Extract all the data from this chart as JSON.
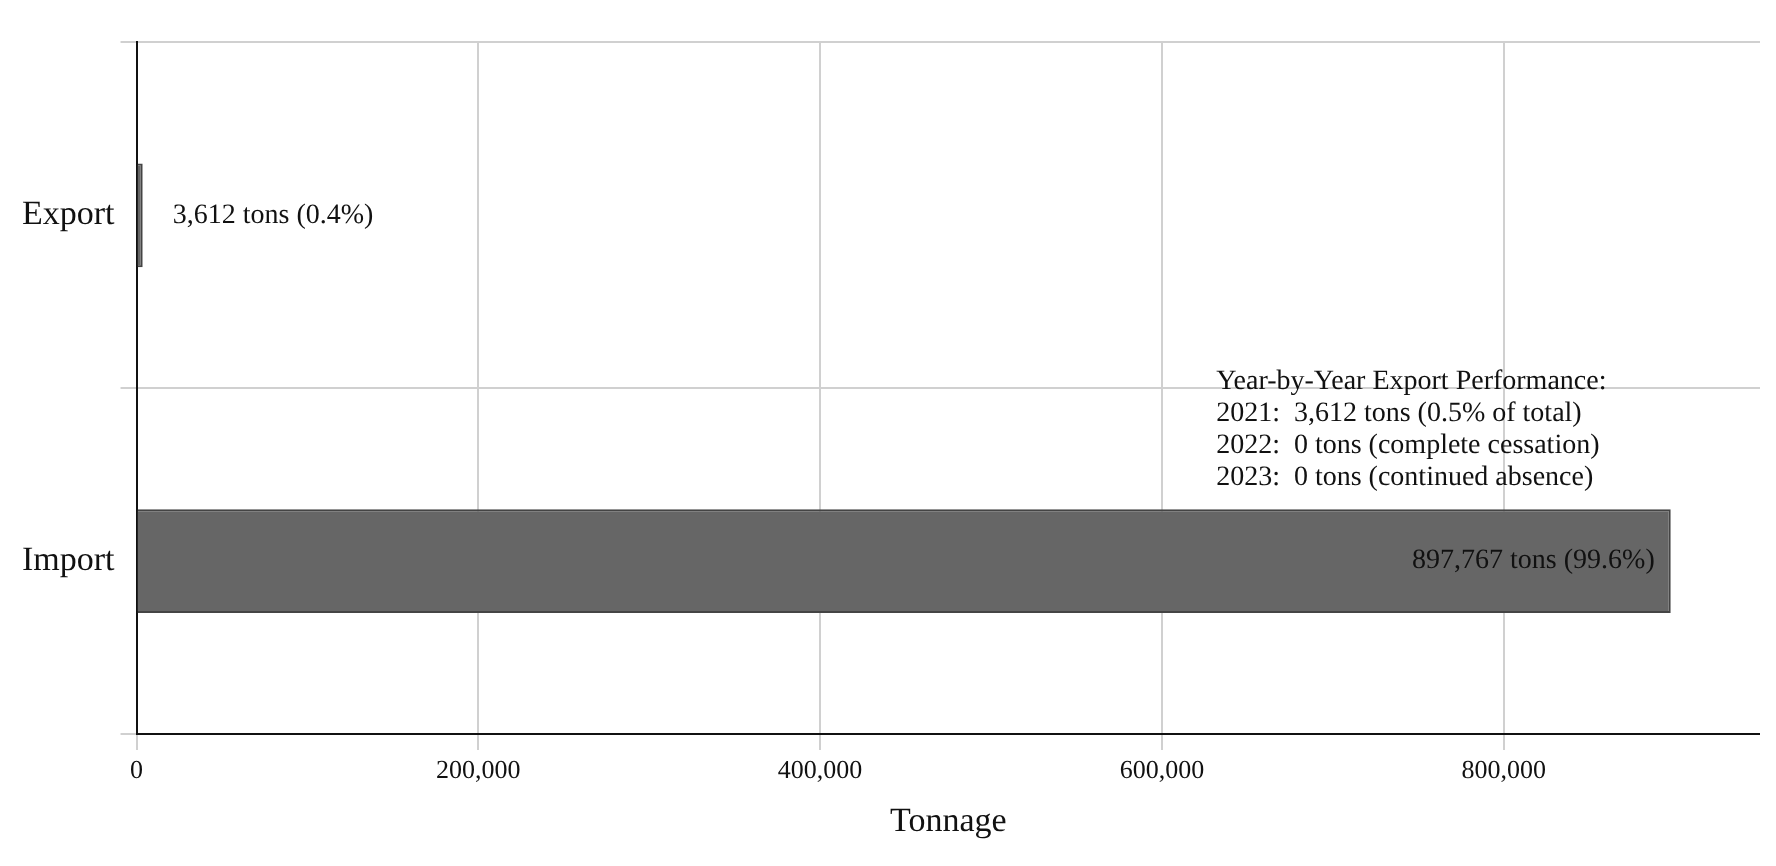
{
  "chart_data": {
    "type": "bar",
    "orientation": "horizontal",
    "categories": [
      "Export",
      "Import"
    ],
    "values": [
      3612,
      897767
    ],
    "color": "#666666",
    "value_labels": [
      "3,612 tons (0.4%)",
      "897,767 tons (99.6%)"
    ],
    "xlabel": "Tonnage",
    "xlim": [
      0,
      950000
    ],
    "xticks": [
      {
        "value": 0,
        "label": "0"
      },
      {
        "value": 200000,
        "label": "200,000"
      },
      {
        "value": 400000,
        "label": "400,000"
      },
      {
        "value": 600000,
        "label": "600,000"
      },
      {
        "value": 800000,
        "label": "800,000"
      }
    ],
    "grid": true,
    "legend": false,
    "annotations": [
      "Year-by-Year Export Performance:\n2021:  3,612 tons (0.5% of total)\n2022:  0 tons (complete cessation)\n2023:  0 tons (continued absence)"
    ]
  }
}
